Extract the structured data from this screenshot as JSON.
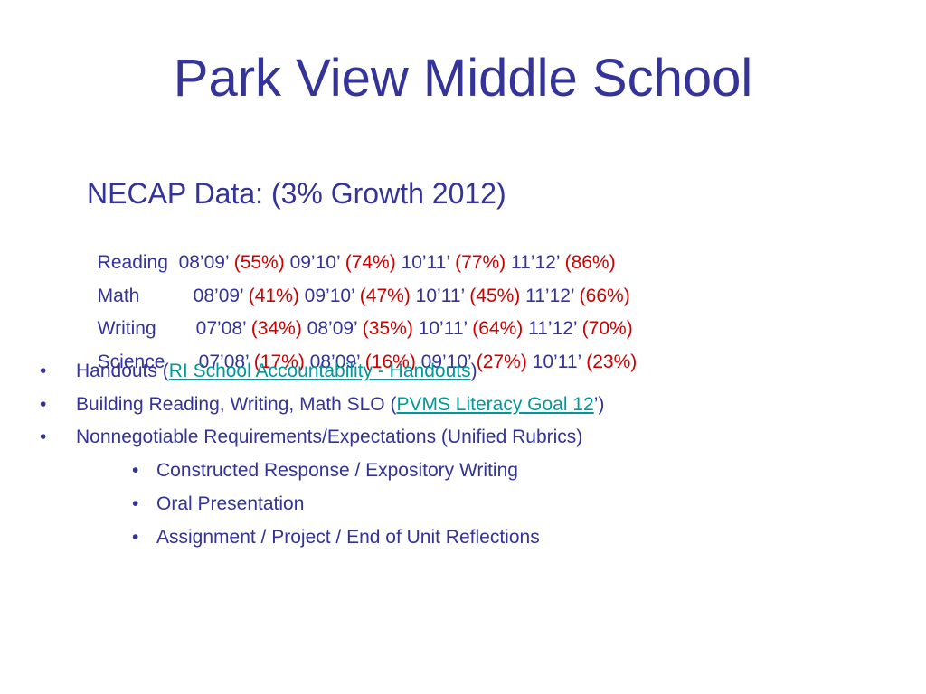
{
  "slide": {
    "title": "Park View Middle School",
    "subtitle": "NECAP Data: (3% Growth 2012)",
    "rows": [
      {
        "subject": "Reading",
        "entries": [
          {
            "year": "08’09’",
            "pct": "(55%)"
          },
          {
            "year": "09’10’",
            "pct": "(74%)"
          },
          {
            "year": "10’11’",
            "pct": "(77%)"
          },
          {
            "year": "11’12’",
            "pct": "(86%)"
          }
        ]
      },
      {
        "subject": "Math",
        "entries": [
          {
            "year": "08’09’",
            "pct": "(41%)"
          },
          {
            "year": "09’10’",
            "pct": "(47%)"
          },
          {
            "year": "10’11’",
            "pct": "(45%)"
          },
          {
            "year": "11’12’",
            "pct": "(66%)"
          }
        ]
      },
      {
        "subject": "Writing",
        "entries": [
          {
            "year": "07’08’",
            "pct": "(34%)"
          },
          {
            "year": "08’09’",
            "pct": "(35%)"
          },
          {
            "year": "10’11’",
            "pct": "(64%)"
          },
          {
            "year": "11’12’",
            "pct": "(70%)"
          }
        ]
      },
      {
        "subject": "Science",
        "entries": [
          {
            "year": "07’08’",
            "pct": "(17%)"
          },
          {
            "year": "08’09’",
            "pct": "(16%)"
          },
          {
            "year": "09’10’",
            "pct": "(27%)"
          },
          {
            "year": "10’11’",
            "pct": "(23%)"
          }
        ]
      }
    ],
    "bullets": {
      "handouts": {
        "prefix": "Handouts (",
        "link": "RI School Accountability - Handouts",
        "suffix": ")"
      },
      "slo": {
        "prefix": "Building Reading, Writing, Math SLO (",
        "link": "PVMS Literacy Goal 12",
        "suffix": "’)"
      },
      "requirements": "Nonnegotiable Requirements/Expectations (Unified Rubrics)",
      "sub_items": [
        "Constructed Response / Expository Writing",
        "Oral Presentation",
        "Assignment / Project / End of Unit Reflections"
      ]
    },
    "bullet_glyph": "•",
    "colors": {
      "text": "#333399",
      "highlight": "#cc0000",
      "link": "#009999"
    }
  }
}
